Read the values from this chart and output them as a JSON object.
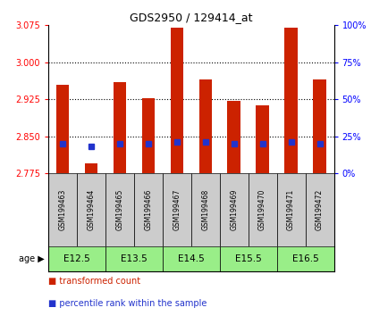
{
  "title": "GDS2950 / 129414_at",
  "samples": [
    "GSM199463",
    "GSM199464",
    "GSM199465",
    "GSM199466",
    "GSM199467",
    "GSM199468",
    "GSM199469",
    "GSM199470",
    "GSM199471",
    "GSM199472"
  ],
  "transformed_count": [
    2.955,
    2.795,
    2.96,
    2.928,
    3.07,
    2.965,
    2.922,
    2.913,
    3.07,
    2.965
  ],
  "percentile_rank": [
    20,
    18,
    20,
    20,
    21,
    21,
    20,
    20,
    21,
    20
  ],
  "ylim_left": [
    2.775,
    3.075
  ],
  "yticks_left": [
    2.775,
    2.85,
    2.925,
    3.0,
    3.075
  ],
  "yticks_right": [
    0,
    25,
    50,
    75,
    100
  ],
  "age_groups": [
    {
      "label": "E12.5",
      "start": 0,
      "end": 2
    },
    {
      "label": "E13.5",
      "start": 2,
      "end": 4
    },
    {
      "label": "E14.5",
      "start": 4,
      "end": 6
    },
    {
      "label": "E15.5",
      "start": 6,
      "end": 8
    },
    {
      "label": "E16.5",
      "start": 8,
      "end": 10
    }
  ],
  "bar_color": "#cc2200",
  "dot_color": "#2233cc",
  "age_bg_color": "#99ee88",
  "sample_bg_color": "#cccccc",
  "bar_width": 0.45,
  "bar_bottom": 2.775,
  "legend_items": [
    "transformed count",
    "percentile rank within the sample"
  ],
  "legend_colors": [
    "#cc2200",
    "#2233cc"
  ],
  "grid_yticks": [
    2.85,
    2.925,
    3.0
  ]
}
